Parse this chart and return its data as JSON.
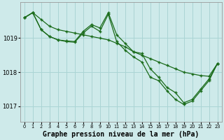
{
  "bg_color": "#ceeaea",
  "grid_color": "#aad4d4",
  "line_color": "#1a6b1a",
  "marker_color": "#1a6b1a",
  "title": "Graphe pression niveau de la mer (hPa)",
  "title_fontsize": 7.0,
  "xlim": [
    -0.5,
    23.5
  ],
  "ylim": [
    1016.55,
    1020.05
  ],
  "yticks": [
    1017,
    1018,
    1019
  ],
  "xticks": [
    0,
    1,
    2,
    3,
    4,
    5,
    6,
    7,
    8,
    9,
    10,
    11,
    12,
    13,
    14,
    15,
    16,
    17,
    18,
    19,
    20,
    21,
    22,
    23
  ],
  "series1": [
    1019.6,
    1019.75,
    1019.55,
    1019.35,
    1019.25,
    1019.2,
    1019.15,
    1019.1,
    1019.05,
    1019.0,
    1018.95,
    1018.85,
    1018.75,
    1018.6,
    1018.5,
    1018.4,
    1018.3,
    1018.2,
    1018.1,
    1018.0,
    1017.95,
    1017.9,
    1017.88,
    1018.25
  ],
  "series2": [
    1019.6,
    1019.75,
    1019.25,
    1019.05,
    1018.95,
    1018.92,
    1018.9,
    1019.2,
    1019.4,
    1019.3,
    1019.75,
    1019.1,
    1018.85,
    1018.6,
    1018.55,
    1018.1,
    1017.85,
    1017.55,
    1017.4,
    1017.1,
    1017.2,
    1017.5,
    1017.8,
    1018.25
  ],
  "series3": [
    1019.6,
    1019.75,
    1019.25,
    1019.05,
    1018.95,
    1018.9,
    1018.88,
    1019.15,
    1019.35,
    1019.2,
    1019.7,
    1018.9,
    1018.65,
    1018.45,
    1018.3,
    1017.85,
    1017.75,
    1017.45,
    1017.2,
    1017.05,
    1017.15,
    1017.45,
    1017.75,
    1018.25
  ]
}
